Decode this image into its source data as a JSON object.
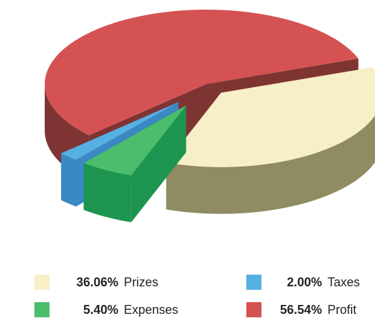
{
  "chart_data": {
    "type": "pie",
    "style": "3d-exploded",
    "title": "",
    "slices": [
      {
        "label": "Prizes",
        "percent_text": "36.06%",
        "value": 36.06,
        "color": "#f7efc7",
        "side_color": "#8f8b62"
      },
      {
        "label": "Expenses",
        "percent_text": "5.40%",
        "value": 5.4,
        "color": "#4cbd6a",
        "side_color": "#1d9450"
      },
      {
        "label": "Taxes",
        "percent_text": "2.00%",
        "value": 2.0,
        "color": "#56b0e2",
        "side_color": "#3a88c4"
      },
      {
        "label": "Profit",
        "percent_text": "56.54%",
        "value": 56.54,
        "color": "#d55252",
        "side_color": "#7f3434"
      }
    ],
    "legend_position": "bottom"
  }
}
